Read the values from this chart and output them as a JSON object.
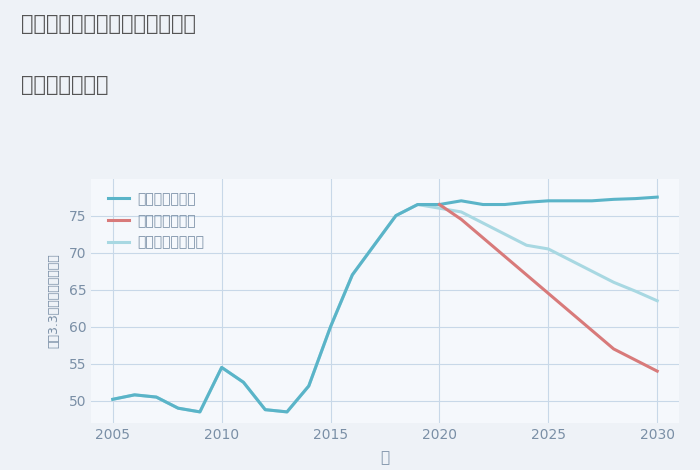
{
  "title_line1": "愛知県名古屋市中村区靖国町の",
  "title_line2": "土地の価格推移",
  "xlabel": "年",
  "ylabel": "坪（3.3㎡）単価（万円）",
  "bg_color": "#eef2f7",
  "plot_bg_color": "#f5f8fc",
  "grid_color": "#c8d8e8",
  "title_color": "#555555",
  "tick_color": "#7a8fa6",
  "label_color": "#7a8fa6",
  "good_scenario": {
    "label": "グッドシナリオ",
    "color": "#5ab4c8",
    "x": [
      2005,
      2006,
      2007,
      2008,
      2009,
      2010,
      2011,
      2012,
      2013,
      2014,
      2015,
      2016,
      2017,
      2018,
      2019,
      2020,
      2021,
      2022,
      2023,
      2024,
      2025,
      2026,
      2027,
      2028,
      2029,
      2030
    ],
    "y": [
      50.2,
      50.8,
      50.5,
      49.0,
      48.5,
      54.5,
      52.5,
      48.8,
      48.5,
      52.0,
      60.0,
      67.0,
      71.0,
      75.0,
      76.5,
      76.5,
      77.0,
      76.5,
      76.5,
      76.8,
      77.0,
      77.0,
      77.0,
      77.2,
      77.3,
      77.5
    ]
  },
  "bad_scenario": {
    "label": "バッドシナリオ",
    "color": "#d87a7a",
    "x": [
      2020,
      2021,
      2022,
      2023,
      2024,
      2025,
      2026,
      2027,
      2028,
      2029,
      2030
    ],
    "y": [
      76.5,
      74.5,
      72.0,
      69.5,
      67.0,
      64.5,
      62.0,
      59.5,
      57.0,
      55.5,
      54.0
    ]
  },
  "normal_scenario": {
    "label": "ノーマルシナリオ",
    "color": "#a8d8e2",
    "x": [
      2005,
      2006,
      2007,
      2008,
      2009,
      2010,
      2011,
      2012,
      2013,
      2014,
      2015,
      2016,
      2017,
      2018,
      2019,
      2020,
      2021,
      2022,
      2023,
      2024,
      2025,
      2026,
      2027,
      2028,
      2029,
      2030
    ],
    "y": [
      50.2,
      50.8,
      50.5,
      49.0,
      48.5,
      54.5,
      52.5,
      48.8,
      48.5,
      52.0,
      60.0,
      67.0,
      71.0,
      75.0,
      76.5,
      76.0,
      75.5,
      74.0,
      72.5,
      71.0,
      70.5,
      69.0,
      67.5,
      66.0,
      64.8,
      63.5
    ]
  },
  "xlim": [
    2004.0,
    2031.0
  ],
  "ylim": [
    47.0,
    80.0
  ],
  "xticks": [
    2005,
    2010,
    2015,
    2020,
    2025,
    2030
  ],
  "yticks": [
    50,
    55,
    60,
    65,
    70,
    75
  ]
}
